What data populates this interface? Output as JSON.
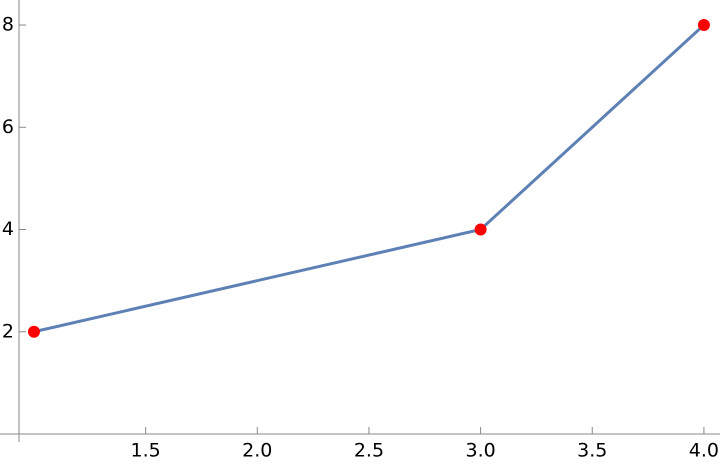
{
  "chart_data": {
    "type": "line",
    "x": [
      1,
      3,
      4
    ],
    "series": [
      {
        "color": "#5e81b5",
        "marker_color": "#ff0000",
        "values": [
          2,
          4,
          8
        ]
      }
    ],
    "xlim": [
      0.933,
      4.072
    ],
    "ylim": [
      0,
      8.47
    ],
    "xticks": [
      1.5,
      {
        "value": 2,
        "label": "2.0"
      },
      2.5,
      {
        "value": 3,
        "label": "3.0"
      },
      3.5,
      {
        "value": 4,
        "label": "4.0"
      }
    ],
    "yticks": [
      2,
      4,
      6,
      8
    ],
    "grid": false
  }
}
